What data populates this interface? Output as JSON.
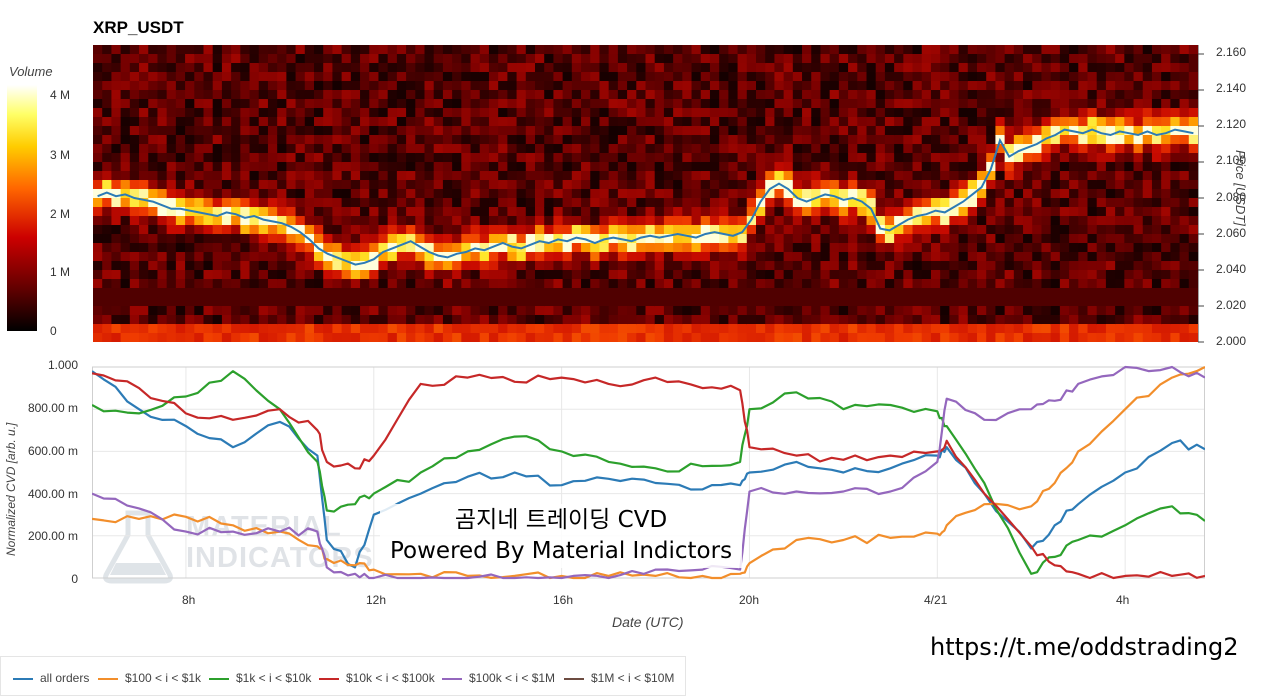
{
  "chart_data": [
    {
      "type": "heatmap",
      "title": "XRP_USDT",
      "colorbar_label": "Volume",
      "colorbar_ticks": [
        "4 M",
        "3 M",
        "2 M",
        "1 M",
        "0"
      ],
      "colorbar_ticks_values": [
        4000000,
        3000000,
        2000000,
        1000000,
        0
      ],
      "ylabel": "Price [USDT]",
      "y_ticks": [
        "2.160",
        "2.140",
        "2.120",
        "2.100",
        "2.080",
        "2.060",
        "2.040",
        "2.020",
        "2.000"
      ],
      "ylim": [
        2.0,
        2.165
      ],
      "price_series_color": "#2c7bb6",
      "price_series": [
        2.081,
        2.083,
        2.081,
        2.082,
        2.08,
        2.079,
        2.078,
        2.076,
        2.074,
        2.074,
        2.073,
        2.072,
        2.071,
        2.07,
        2.072,
        2.071,
        2.069,
        2.07,
        2.068,
        2.067,
        2.066,
        2.064,
        2.061,
        2.057,
        2.052,
        2.049,
        2.047,
        2.045,
        2.043,
        2.044,
        2.046,
        2.05,
        2.052,
        2.054,
        2.056,
        2.053,
        2.05,
        2.048,
        2.047,
        2.049,
        2.05,
        2.052,
        2.051,
        2.053,
        2.055,
        2.053,
        2.052,
        2.054,
        2.056,
        2.055,
        2.057,
        2.056,
        2.058,
        2.057,
        2.055,
        2.057,
        2.058,
        2.057,
        2.056,
        2.058,
        2.059,
        2.058,
        2.059,
        2.06,
        2.059,
        2.058,
        2.06,
        2.061,
        2.06,
        2.059,
        2.061,
        2.068,
        2.078,
        2.085,
        2.088,
        2.085,
        2.08,
        2.078,
        2.08,
        2.082,
        2.081,
        2.079,
        2.08,
        2.078,
        2.074,
        2.063,
        2.062,
        2.065,
        2.068,
        2.07,
        2.071,
        2.073,
        2.072,
        2.075,
        2.078,
        2.082,
        2.086,
        2.096,
        2.112,
        2.103,
        2.106,
        2.108,
        2.11,
        2.113,
        2.115,
        2.118,
        2.117,
        2.116,
        2.118,
        2.116,
        2.115,
        2.117,
        2.116,
        2.115,
        2.117,
        2.115,
        2.116,
        2.118,
        2.117,
        2.116
      ]
    },
    {
      "type": "line",
      "xlabel": "Date (UTC)",
      "ylabel": "Normalized CVD [arb. u.]",
      "x_ticks": [
        "8h",
        "12h",
        "16h",
        "20h",
        "4/21",
        "4h"
      ],
      "x_tick_hours": [
        8,
        12,
        16,
        20,
        24,
        28
      ],
      "xlim_hours": [
        6,
        29.7
      ],
      "y_ticks": [
        "1.000",
        "800.00 m",
        "600.00 m",
        "400.00 m",
        "200.00 m",
        "0"
      ],
      "y_ticks_values": [
        1.0,
        0.8,
        0.6,
        0.4,
        0.2,
        0
      ],
      "ylim": [
        0,
        1.0
      ],
      "x_hours": [
        6,
        7,
        8,
        9,
        10,
        10.8,
        11,
        11.6,
        12,
        13,
        14,
        15,
        16,
        17,
        18,
        19,
        19.8,
        20,
        21,
        22,
        23,
        24,
        24.2,
        25,
        26,
        26.5,
        27,
        28,
        29,
        29.7
      ],
      "series": [
        {
          "name": "all orders",
          "color": "#2c7bb6",
          "values": [
            0.98,
            0.8,
            0.72,
            0.62,
            0.74,
            0.58,
            0.18,
            0.05,
            0.3,
            0.4,
            0.48,
            0.5,
            0.44,
            0.47,
            0.45,
            0.42,
            0.44,
            0.5,
            0.55,
            0.5,
            0.52,
            0.58,
            0.62,
            0.4,
            0.14,
            0.25,
            0.35,
            0.5,
            0.64,
            0.61
          ]
        },
        {
          "name": "$100 < i < $1k",
          "color": "#f28e2b",
          "values": [
            0.28,
            0.28,
            0.29,
            0.25,
            0.22,
            0.15,
            0.09,
            0.06,
            0.04,
            0.02,
            0.01,
            0.01,
            0.01,
            0.01,
            0.01,
            0.01,
            0.02,
            0.07,
            0.18,
            0.18,
            0.19,
            0.21,
            0.25,
            0.35,
            0.34,
            0.45,
            0.6,
            0.8,
            0.95,
            1.0
          ]
        },
        {
          "name": "$1k < i < $10k",
          "color": "#2ca02c",
          "values": [
            0.82,
            0.78,
            0.86,
            0.98,
            0.8,
            0.55,
            0.32,
            0.35,
            0.4,
            0.5,
            0.6,
            0.67,
            0.6,
            0.55,
            0.52,
            0.53,
            0.55,
            0.8,
            0.88,
            0.8,
            0.82,
            0.79,
            0.72,
            0.45,
            0.02,
            0.1,
            0.18,
            0.25,
            0.34,
            0.27
          ]
        },
        {
          "name": "$10k < i < $100k",
          "color": "#c62828",
          "values": [
            0.97,
            0.9,
            0.78,
            0.75,
            0.8,
            0.7,
            0.55,
            0.52,
            0.58,
            0.92,
            0.95,
            0.93,
            0.95,
            0.92,
            0.95,
            0.9,
            0.89,
            0.62,
            0.58,
            0.56,
            0.58,
            0.6,
            0.65,
            0.4,
            0.15,
            0.06,
            0.02,
            0.01,
            0.01,
            0.01
          ]
        },
        {
          "name": "$100k < i < $1M",
          "color": "#9467bd",
          "values": [
            0.4,
            0.33,
            0.22,
            0.22,
            0.22,
            0.22,
            0.05,
            0.02,
            0.0,
            0.0,
            0.0,
            0.0,
            0.0,
            0.0,
            0.04,
            0.04,
            0.04,
            0.41,
            0.41,
            0.41,
            0.41,
            0.55,
            0.85,
            0.75,
            0.8,
            0.84,
            0.92,
            1.0,
            1.0,
            0.95
          ]
        },
        {
          "name": "$1M < i < $10M",
          "color": "#6d4c41",
          "values": []
        }
      ]
    }
  ],
  "watermark": {
    "line1": "MATERIAL",
    "line2": "INDICATORS"
  },
  "overlay": {
    "line1": "곰지네 트레이딩 CVD",
    "line2": "Powered By Material Indictors"
  },
  "url": "https://t.me/oddstrading2"
}
